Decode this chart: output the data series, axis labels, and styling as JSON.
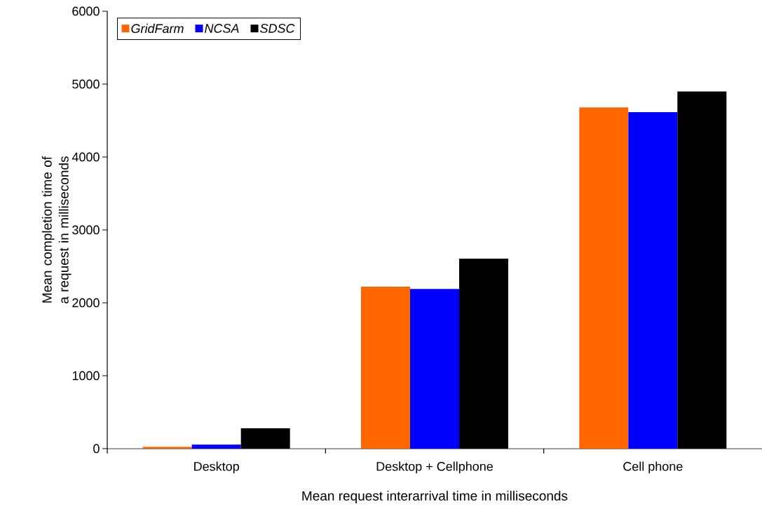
{
  "chart_data": {
    "type": "bar",
    "xlabel": "Mean request interarrival time in milliseconds",
    "ylabel": "Mean completion time of a request in milliseconds",
    "categories": [
      "Desktop",
      "Desktop + Cellphone",
      "Cell phone"
    ],
    "series": [
      {
        "name": "GridFarm",
        "color": "#ff6600",
        "values": [
          25,
          2220,
          4680
        ]
      },
      {
        "name": "NCSA",
        "color": "#0000ff",
        "values": [
          55,
          2190,
          4615
        ]
      },
      {
        "name": "SDSC",
        "color": "#000000",
        "values": [
          280,
          2605,
          4900
        ]
      }
    ],
    "ylim": [
      0,
      6000
    ],
    "yticks": [
      0,
      1000,
      2000,
      3000,
      4000,
      5000,
      6000
    ],
    "grid": false,
    "legend": "top left"
  }
}
